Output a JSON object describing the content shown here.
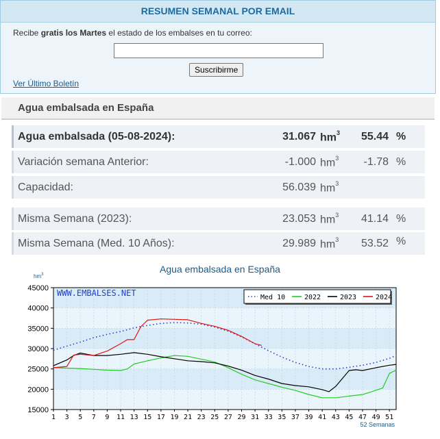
{
  "email": {
    "header": "RESUMEN SEMANAL POR EMAIL",
    "intro_prefix": "Recibe ",
    "intro_bold": "gratis los Martes",
    "intro_suffix": " el estado de los embalses en tu correo:",
    "input_value": "",
    "subscribe_label": "Suscribirme",
    "bulletin_link": "Ver Último Boletín"
  },
  "section_title": "Agua embalsada en España",
  "stats": [
    {
      "label": "Agua embalsada (05-08-2024):",
      "value": "31.067",
      "unit": "hm",
      "pct": "55.44",
      "pct_sign": "%"
    },
    {
      "label": "Variación semana Anterior:",
      "value": "-1.000",
      "unit": "hm",
      "pct": "-1.78",
      "pct_sign": "%"
    },
    {
      "label": "Capacidad:",
      "value": "56.039",
      "unit": "hm",
      "pct": "",
      "pct_sign": ""
    },
    {
      "label": "Misma Semana (2023):",
      "value": "23.053",
      "unit": "hm",
      "pct": "41.14",
      "pct_sign": "%"
    },
    {
      "label": "Misma Semana (Med. 10 Años):",
      "value": "29.989",
      "unit": "hm",
      "pct": "53.52",
      "pct_sign": "%"
    }
  ],
  "unit_exponent": "3",
  "chart_data": {
    "type": "line",
    "title": "Agua embalsada en España",
    "ylabel": "hm",
    "ylabel_exp": "3",
    "xlabel": "52 Semanas",
    "watermark": "WWW.EMBALSES.NET",
    "ylim": [
      15000,
      45000
    ],
    "y_ticks": [
      15000,
      20000,
      25000,
      30000,
      35000,
      40000,
      45000
    ],
    "x_ticks": [
      1,
      3,
      5,
      7,
      9,
      11,
      13,
      15,
      17,
      19,
      21,
      23,
      25,
      27,
      29,
      31,
      33,
      35,
      37,
      39,
      41,
      43,
      45,
      47,
      49,
      51
    ],
    "xlim": [
      1,
      52
    ],
    "grid": true,
    "legend_position": "top-right",
    "series": [
      {
        "name": "Med 10",
        "color": "#1f3fd0",
        "style": "dotted",
        "x": [
          1,
          3,
          5,
          7,
          9,
          11,
          13,
          15,
          17,
          19,
          21,
          23,
          25,
          27,
          29,
          31,
          33,
          35,
          37,
          39,
          41,
          43,
          45,
          47,
          49,
          51,
          52
        ],
        "y": [
          29600,
          30600,
          31600,
          32700,
          33500,
          34200,
          35100,
          35700,
          36200,
          36400,
          36300,
          36000,
          35300,
          34300,
          32900,
          31200,
          29500,
          27900,
          26600,
          25600,
          25000,
          25000,
          25400,
          25900,
          26600,
          27600,
          28300
        ]
      },
      {
        "name": "2022",
        "color": "#22cc22",
        "style": "solid",
        "x": [
          1,
          3,
          5,
          7,
          9,
          11,
          12,
          13,
          15,
          17,
          19,
          21,
          23,
          25,
          27,
          29,
          31,
          33,
          35,
          37,
          39,
          41,
          43,
          45,
          47,
          48,
          50,
          51,
          52
        ],
        "y": [
          25300,
          25200,
          25100,
          24900,
          24700,
          24600,
          25000,
          26200,
          27000,
          27700,
          28300,
          28100,
          27400,
          26700,
          25300,
          23700,
          22300,
          21400,
          20500,
          19700,
          18700,
          17900,
          17900,
          18300,
          18700,
          19200,
          20300,
          23900,
          24700
        ]
      },
      {
        "name": "2023",
        "color": "#000000",
        "style": "solid",
        "x": [
          1,
          3,
          4,
          5,
          7,
          9,
          11,
          13,
          15,
          17,
          19,
          21,
          23,
          25,
          27,
          29,
          31,
          33,
          35,
          37,
          39,
          41,
          42,
          43,
          45,
          46,
          47,
          49,
          51,
          52
        ],
        "y": [
          25800,
          27200,
          28300,
          28900,
          28300,
          28300,
          28600,
          29000,
          28600,
          28000,
          27500,
          27000,
          26800,
          26500,
          25700,
          24700,
          23400,
          22500,
          21400,
          20900,
          20600,
          19900,
          19400,
          20700,
          24600,
          24800,
          24600,
          25300,
          25900,
          26100
        ]
      },
      {
        "name": "2024",
        "color": "#e01010",
        "style": "solid",
        "x": [
          1,
          3,
          4,
          5,
          7,
          9,
          11,
          12,
          13,
          14,
          15,
          17,
          19,
          21,
          23,
          25,
          27,
          29,
          31,
          32
        ],
        "y": [
          25300,
          25600,
          28400,
          28600,
          28300,
          29400,
          31200,
          32200,
          32200,
          35400,
          37000,
          37300,
          37200,
          37100,
          36200,
          35500,
          34500,
          33000,
          31200,
          30800
        ]
      }
    ]
  }
}
